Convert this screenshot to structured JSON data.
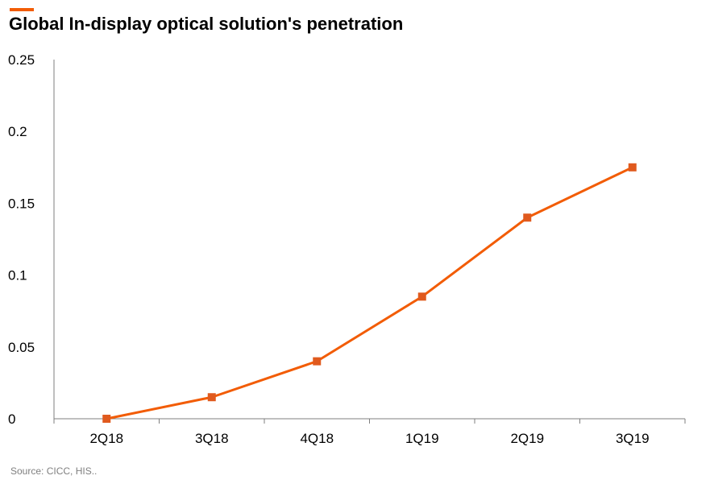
{
  "title": "Global In-display optical solution's penetration",
  "source": "Source:  CICC, HIS..",
  "colors": {
    "accent": "#f25c05",
    "line": "#f25c05",
    "marker": "#e05a1e",
    "axis": "#7f7f7f"
  },
  "chart_data": {
    "type": "line",
    "title": "Global In-display optical solution's penetration",
    "xlabel": "",
    "ylabel": "",
    "categories": [
      "2Q18",
      "3Q18",
      "4Q18",
      "1Q19",
      "2Q19",
      "3Q19"
    ],
    "values": [
      0,
      0.015,
      0.04,
      0.085,
      0.14,
      0.175
    ],
    "ylim": [
      0,
      0.25
    ],
    "yticks": [
      "0",
      "0.05",
      "0.1",
      "0.15",
      "0.2",
      "0.25"
    ],
    "grid": false,
    "marker": "square"
  }
}
